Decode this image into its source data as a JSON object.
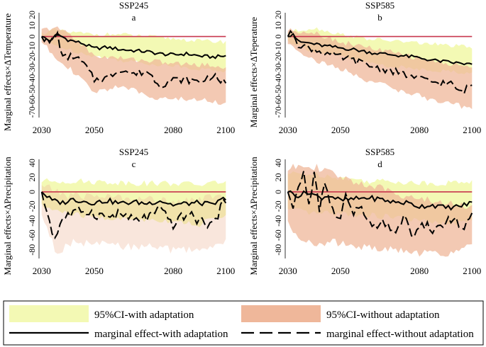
{
  "x_ticks": [
    "2030",
    "2050",
    "2080",
    "2100"
  ],
  "colors": {
    "ci_with": "#f3f9b4",
    "ci_without": "#efb79a",
    "zero_line": "#c8364e",
    "line": "#000000"
  },
  "legend": {
    "ci_with": "95%CI-with adaptation",
    "ci_without": "95%CI-without adaptation",
    "line_with": "marginal effect-with adaptation",
    "line_without": "marginal effect-without adaptation"
  },
  "chart_data": [
    {
      "type": "line",
      "title": "SSP245",
      "letter": "a",
      "ylabel": "Marginal effects×ΔTemperature",
      "yticks": [
        "20",
        "10",
        "0",
        "-10",
        "-20",
        "-30",
        "-40",
        "-50",
        "-60",
        "-70"
      ],
      "ylim": [
        -75,
        22
      ],
      "xlim": [
        2029,
        2101
      ],
      "key_points": {
        "with": [
          [
            2030,
            0
          ],
          [
            2033,
            -4
          ],
          [
            2036,
            2
          ],
          [
            2040,
            -3
          ],
          [
            2045,
            -6
          ],
          [
            2050,
            -11
          ],
          [
            2055,
            -10
          ],
          [
            2060,
            -12
          ],
          [
            2065,
            -13
          ],
          [
            2070,
            -14
          ],
          [
            2075,
            -16
          ],
          [
            2080,
            -17
          ],
          [
            2085,
            -16
          ],
          [
            2090,
            -18
          ],
          [
            2095,
            -19
          ],
          [
            2100,
            -18
          ]
        ],
        "without": [
          [
            2030,
            0
          ],
          [
            2033,
            -6
          ],
          [
            2036,
            2
          ],
          [
            2038,
            -20
          ],
          [
            2042,
            -18
          ],
          [
            2046,
            -25
          ],
          [
            2050,
            -40
          ],
          [
            2055,
            -38
          ],
          [
            2060,
            -30
          ],
          [
            2065,
            -35
          ],
          [
            2070,
            -32
          ],
          [
            2075,
            -45
          ],
          [
            2080,
            -40
          ],
          [
            2085,
            -40
          ],
          [
            2090,
            -42
          ],
          [
            2095,
            -36
          ],
          [
            2100,
            -44
          ]
        ],
        "with_ci": [
          [
            2030,
            3,
            -3
          ],
          [
            2035,
            6,
            -8
          ],
          [
            2040,
            4,
            -12
          ],
          [
            2050,
            2,
            -18
          ],
          [
            2060,
            2,
            -22
          ],
          [
            2070,
            0,
            -25
          ],
          [
            2080,
            -2,
            -27
          ],
          [
            2090,
            -4,
            -30
          ],
          [
            2100,
            -5,
            -32
          ]
        ],
        "without_ci": [
          [
            2030,
            6,
            -5
          ],
          [
            2035,
            8,
            -18
          ],
          [
            2040,
            4,
            -28
          ],
          [
            2050,
            -18,
            -52
          ],
          [
            2060,
            -20,
            -45
          ],
          [
            2070,
            -22,
            -55
          ],
          [
            2080,
            -25,
            -58
          ],
          [
            2090,
            -26,
            -58
          ],
          [
            2100,
            -28,
            -62
          ]
        ]
      }
    },
    {
      "type": "line",
      "title": "SSP585",
      "letter": "b",
      "ylabel": "Marginal effects×ΔTeperature",
      "yticks": [
        "20",
        "10",
        "0",
        "-10",
        "-20",
        "-30",
        "-40",
        "-50",
        "-60",
        "-70"
      ],
      "ylim": [
        -75,
        22
      ],
      "xlim": [
        2029,
        2101
      ],
      "key_points": {
        "with": [
          [
            2030,
            0
          ],
          [
            2032,
            3
          ],
          [
            2034,
            -5
          ],
          [
            2038,
            -6
          ],
          [
            2042,
            -8
          ],
          [
            2048,
            -10
          ],
          [
            2055,
            -12
          ],
          [
            2062,
            -15
          ],
          [
            2070,
            -17
          ],
          [
            2078,
            -19
          ],
          [
            2085,
            -22
          ],
          [
            2092,
            -24
          ],
          [
            2100,
            -26
          ]
        ],
        "without": [
          [
            2030,
            0
          ],
          [
            2032,
            4
          ],
          [
            2034,
            -7
          ],
          [
            2040,
            -12
          ],
          [
            2048,
            -18
          ],
          [
            2055,
            -22
          ],
          [
            2062,
            -28
          ],
          [
            2070,
            -32
          ],
          [
            2078,
            -38
          ],
          [
            2085,
            -42
          ],
          [
            2092,
            -44
          ],
          [
            2096,
            -52
          ],
          [
            2100,
            -44
          ]
        ],
        "with_ci": [
          [
            2030,
            4,
            -4
          ],
          [
            2040,
            8,
            -14
          ],
          [
            2050,
            2,
            -18
          ],
          [
            2060,
            -2,
            -24
          ],
          [
            2070,
            -4,
            -28
          ],
          [
            2080,
            -6,
            -30
          ],
          [
            2090,
            -8,
            -32
          ],
          [
            2100,
            -10,
            -34
          ]
        ],
        "without_ci": [
          [
            2030,
            6,
            -6
          ],
          [
            2040,
            4,
            -22
          ],
          [
            2050,
            -5,
            -30
          ],
          [
            2060,
            -10,
            -40
          ],
          [
            2070,
            -15,
            -48
          ],
          [
            2080,
            -20,
            -55
          ],
          [
            2090,
            -25,
            -62
          ],
          [
            2100,
            -28,
            -66
          ]
        ]
      }
    },
    {
      "type": "line",
      "title": "SSP245",
      "letter": "c",
      "ylabel": "Marginal effects×ΔPrecipitation",
      "yticks": [
        "40",
        "20",
        "0",
        "-20",
        "-40",
        "-60",
        "-80"
      ],
      "ylim": [
        -92,
        45
      ],
      "xlim": [
        2029,
        2101
      ],
      "key_points": {
        "with": [
          [
            2030,
            0
          ],
          [
            2034,
            -12
          ],
          [
            2038,
            -15
          ],
          [
            2042,
            -10
          ],
          [
            2046,
            -13
          ],
          [
            2050,
            -15
          ],
          [
            2055,
            -12
          ],
          [
            2060,
            -16
          ],
          [
            2065,
            -14
          ],
          [
            2070,
            -16
          ],
          [
            2075,
            -12
          ],
          [
            2080,
            -18
          ],
          [
            2085,
            -16
          ],
          [
            2090,
            -15
          ],
          [
            2095,
            -18
          ],
          [
            2100,
            -8
          ]
        ],
        "without": [
          [
            2030,
            0
          ],
          [
            2033,
            -40
          ],
          [
            2035,
            -65
          ],
          [
            2038,
            -35
          ],
          [
            2042,
            -30
          ],
          [
            2046,
            -25
          ],
          [
            2050,
            -30
          ],
          [
            2055,
            -35
          ],
          [
            2060,
            -30
          ],
          [
            2065,
            -40
          ],
          [
            2070,
            -35
          ],
          [
            2075,
            -25
          ],
          [
            2080,
            -45
          ],
          [
            2085,
            -30
          ],
          [
            2090,
            -40
          ],
          [
            2095,
            -45
          ],
          [
            2100,
            -10
          ]
        ],
        "with_ci": [
          [
            2030,
            15,
            -20
          ],
          [
            2040,
            15,
            -30
          ],
          [
            2050,
            14,
            -35
          ],
          [
            2060,
            13,
            -38
          ],
          [
            2070,
            12,
            -38
          ],
          [
            2080,
            12,
            -40
          ],
          [
            2090,
            10,
            -45
          ],
          [
            2100,
            15,
            -30
          ]
        ],
        "without_ci": [
          [
            2030,
            10,
            -30
          ],
          [
            2036,
            0,
            -88
          ],
          [
            2040,
            -5,
            -70
          ],
          [
            2050,
            -5,
            -72
          ],
          [
            2060,
            -8,
            -75
          ],
          [
            2070,
            -10,
            -76
          ],
          [
            2080,
            -12,
            -80
          ],
          [
            2090,
            -10,
            -80
          ],
          [
            2100,
            -5,
            -70
          ]
        ]
      }
    },
    {
      "type": "line",
      "title": "SSP585",
      "letter": "d",
      "ylabel": "Marginal effects×ΔPrecipitation",
      "yticks": [
        "40",
        "20",
        "0",
        "-20",
        "-40",
        "-60",
        "-80"
      ],
      "ylim": [
        -92,
        45
      ],
      "xlim": [
        2029,
        2101
      ],
      "key_points": {
        "with": [
          [
            2030,
            0
          ],
          [
            2034,
            -5
          ],
          [
            2038,
            0
          ],
          [
            2042,
            -8
          ],
          [
            2046,
            -5
          ],
          [
            2050,
            -12
          ],
          [
            2055,
            -10
          ],
          [
            2060,
            -8
          ],
          [
            2065,
            -10
          ],
          [
            2070,
            -14
          ],
          [
            2075,
            -15
          ],
          [
            2080,
            -20
          ],
          [
            2085,
            -18
          ],
          [
            2090,
            -22
          ],
          [
            2095,
            -20
          ],
          [
            2100,
            -15
          ]
        ],
        "without": [
          [
            2030,
            0
          ],
          [
            2032,
            -30
          ],
          [
            2034,
            10
          ],
          [
            2036,
            25
          ],
          [
            2038,
            -20
          ],
          [
            2040,
            30
          ],
          [
            2042,
            -30
          ],
          [
            2044,
            15
          ],
          [
            2046,
            -20
          ],
          [
            2050,
            -40
          ],
          [
            2052,
            0
          ],
          [
            2055,
            -35
          ],
          [
            2058,
            -15
          ],
          [
            2060,
            -40
          ],
          [
            2062,
            -50
          ],
          [
            2066,
            -45
          ],
          [
            2070,
            -55
          ],
          [
            2074,
            -38
          ],
          [
            2078,
            -60
          ],
          [
            2082,
            -45
          ],
          [
            2086,
            -55
          ],
          [
            2090,
            -40
          ],
          [
            2094,
            -40
          ],
          [
            2096,
            -50
          ],
          [
            2098,
            -45
          ],
          [
            2100,
            -35
          ]
        ],
        "with_ci": [
          [
            2030,
            25,
            -25
          ],
          [
            2040,
            25,
            -30
          ],
          [
            2050,
            20,
            -30
          ],
          [
            2060,
            15,
            -32
          ],
          [
            2070,
            15,
            -35
          ],
          [
            2080,
            12,
            -40
          ],
          [
            2090,
            12,
            -45
          ],
          [
            2100,
            15,
            -40
          ]
        ],
        "without_ci": [
          [
            2030,
            30,
            -45
          ],
          [
            2035,
            40,
            -70
          ],
          [
            2040,
            35,
            -70
          ],
          [
            2050,
            20,
            -70
          ],
          [
            2060,
            10,
            -78
          ],
          [
            2070,
            0,
            -80
          ],
          [
            2080,
            -10,
            -85
          ],
          [
            2090,
            -15,
            -85
          ],
          [
            2100,
            -20,
            -75
          ]
        ]
      }
    }
  ]
}
